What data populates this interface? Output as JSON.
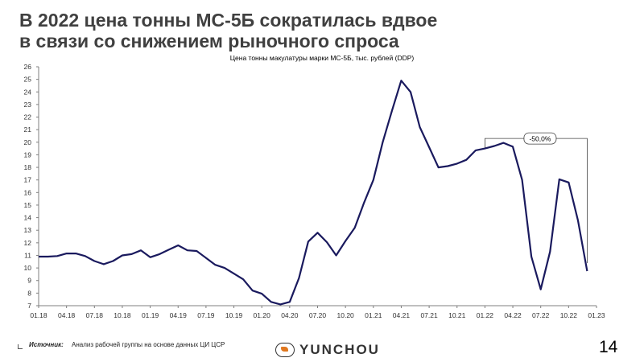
{
  "slide": {
    "title_line1": "В 2022 цена тонны МС-5Б сократилась вдвое",
    "title_line2": "в связи со снижением рыночного спроса",
    "page_number": "14"
  },
  "footer": {
    "source_label": "Источник:",
    "source_text": "Анализ рабочей группы на основе данных ЦИ ЦСР",
    "logo_text": "YUNCHOU"
  },
  "chart_data": {
    "type": "line",
    "title": "Цена тонны макулатуры марки МС-5Б, тыс. рублей (DDP)",
    "xlabel": "",
    "ylabel": "",
    "ylim": [
      7,
      26
    ],
    "yticks": [
      7,
      8,
      9,
      10,
      11,
      12,
      13,
      14,
      15,
      16,
      17,
      18,
      19,
      20,
      21,
      22,
      23,
      24,
      25,
      26
    ],
    "xlim": [
      "01.18",
      "01.23"
    ],
    "xticks": [
      "01.18",
      "04.18",
      "07.18",
      "10.18",
      "01.19",
      "04.19",
      "07.19",
      "10.19",
      "01.20",
      "04.20",
      "07.20",
      "10.20",
      "01.21",
      "04.21",
      "07.21",
      "10.21",
      "01.22",
      "04.22",
      "07.22",
      "10.22",
      "01.23"
    ],
    "grid": false,
    "line_color": "#1a1a5e",
    "series": [
      {
        "x": [
          "01.18",
          "02.18",
          "03.18",
          "04.18",
          "05.18",
          "06.18",
          "07.18",
          "08.18",
          "09.18",
          "10.18",
          "11.18",
          "12.18",
          "01.19",
          "02.19",
          "03.19",
          "04.19",
          "05.19",
          "06.19",
          "07.19",
          "08.19",
          "09.19",
          "10.19",
          "11.19",
          "12.19",
          "01.20",
          "02.20",
          "03.20",
          "04.20",
          "05.20",
          "06.20",
          "07.20",
          "08.20",
          "09.20",
          "10.20",
          "11.20",
          "12.20",
          "01.21",
          "02.21",
          "03.21",
          "04.21",
          "05.21",
          "06.21",
          "07.21",
          "08.21",
          "09.21",
          "10.21",
          "11.21",
          "12.21",
          "01.22",
          "02.22",
          "03.22",
          "04.22",
          "05.22",
          "06.22",
          "07.22",
          "08.22",
          "09.22",
          "10.22",
          "11.22",
          "12.22"
        ],
        "values": [
          10.9,
          10.9,
          10.95,
          11.15,
          11.15,
          10.95,
          10.55,
          10.3,
          10.55,
          11.0,
          11.1,
          11.4,
          10.85,
          11.1,
          11.45,
          11.8,
          11.4,
          11.35,
          10.8,
          10.25,
          10.0,
          9.55,
          9.1,
          8.2,
          7.95,
          7.3,
          7.1,
          7.3,
          9.2,
          12.1,
          12.8,
          12.05,
          11.0,
          12.15,
          13.2,
          15.2,
          17.0,
          20.0,
          22.5,
          24.9,
          24.0,
          21.2,
          19.6,
          18.0,
          18.1,
          18.3,
          18.6,
          19.35,
          19.5,
          19.7,
          19.95,
          19.65,
          17.0,
          10.9,
          8.3,
          11.3,
          17.05,
          16.8,
          13.8,
          9.75
        ]
      }
    ],
    "annotations": [
      {
        "text": "-50,0%"
      }
    ]
  }
}
